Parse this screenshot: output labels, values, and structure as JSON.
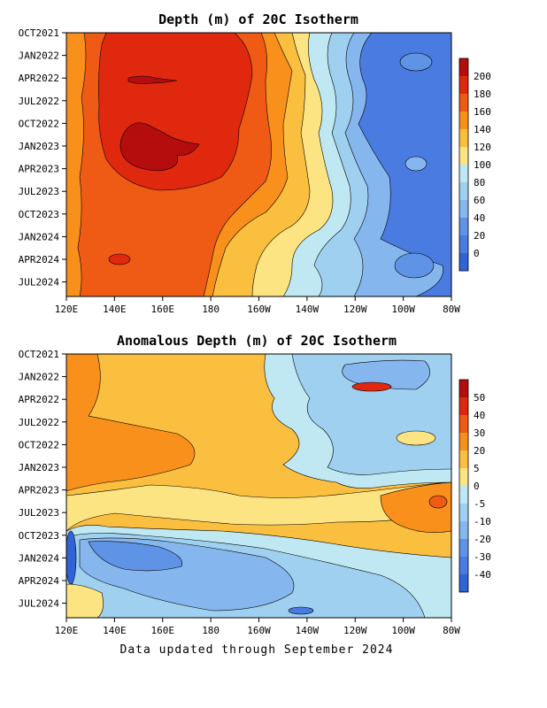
{
  "footer": "Data updated through September 2024",
  "chart_data": [
    {
      "type": "heatmap",
      "title": "Depth (m) of 20C Isotherm",
      "x_ticks": [
        "120E",
        "140E",
        "160E",
        "180",
        "160W",
        "140W",
        "120W",
        "100W",
        "80W"
      ],
      "y_ticks": [
        "OCT2021",
        "JAN2022",
        "APR2022",
        "JUL2022",
        "OCT2022",
        "JAN2023",
        "APR2023",
        "JUL2023",
        "OCT2023",
        "JAN2024",
        "APR2024",
        "JUL2024"
      ],
      "legend_labels": [
        "200",
        "180",
        "160",
        "140",
        "120",
        "100",
        "80",
        "60",
        "40",
        "20",
        "0"
      ],
      "legend_colors": [
        "#b50d0d",
        "#e0280f",
        "#ef5a14",
        "#f9901c",
        "#fbbf40",
        "#fde482",
        "#bfe8f2",
        "#9fd0f0",
        "#86b6ee",
        "#5f93e6",
        "#4a7be0",
        "#2f63d6"
      ],
      "legend_placement": "right",
      "grid": false,
      "description_values": {
        "x_range": [
          "120E",
          "80W"
        ],
        "y_range": [
          "OCT2021",
          "SEP2024"
        ]
      }
    },
    {
      "type": "heatmap",
      "title": "Anomalous Depth (m) of 20C Isotherm",
      "x_ticks": [
        "120E",
        "140E",
        "160E",
        "180",
        "160W",
        "140W",
        "120W",
        "100W",
        "80W"
      ],
      "y_ticks": [
        "OCT2021",
        "JAN2022",
        "APR2022",
        "JUL2022",
        "OCT2022",
        "JAN2023",
        "APR2023",
        "JUL2023",
        "OCT2023",
        "JAN2024",
        "APR2024",
        "JUL2024"
      ],
      "legend_labels": [
        "50",
        "40",
        "30",
        "20",
        "5",
        "0",
        "-5",
        "-10",
        "-20",
        "-30",
        "-40"
      ],
      "legend_colors": [
        "#b50d0d",
        "#e0280f",
        "#ef5a14",
        "#f9901c",
        "#fbbf40",
        "#fde482",
        "#bfe8f2",
        "#9fd0f0",
        "#86b6ee",
        "#5f93e6",
        "#4a7be0",
        "#2f63d6"
      ],
      "legend_placement": "right",
      "grid": false,
      "description_values": {
        "x_range": [
          "120E",
          "80W"
        ],
        "y_range": [
          "OCT2021",
          "SEP2024"
        ]
      }
    }
  ]
}
